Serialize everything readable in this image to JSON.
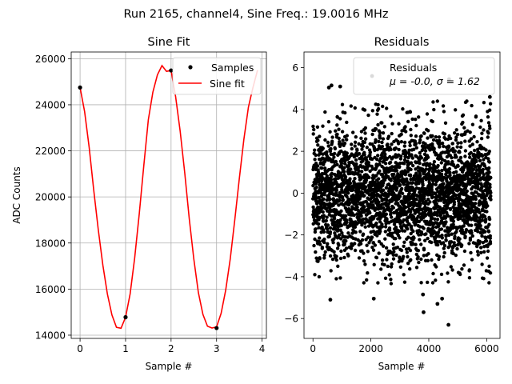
{
  "figure": {
    "suptitle": "Run 2165, channel4, Sine Freq.: 19.0016 MHz"
  },
  "colors": {
    "fit_line": "#ff0000",
    "points": "#000000",
    "grid": "#b0b0b0"
  },
  "chart_data": [
    {
      "id": "sine-fit",
      "type": "line",
      "title": "Sine Fit",
      "xlabel": "Sample #",
      "ylabel": "ADC Counts",
      "xlim": [
        -0.195,
        4.095
      ],
      "ylim": [
        13860,
        26290
      ],
      "xticks": [
        0,
        1,
        2,
        3,
        4
      ],
      "xtick_labels": [
        "0",
        "1",
        "2",
        "3",
        "4"
      ],
      "yticks": [
        14000,
        16000,
        18000,
        20000,
        22000,
        24000,
        26000
      ],
      "ytick_labels": [
        "14000",
        "16000",
        "18000",
        "20000",
        "22000",
        "24000",
        "26000"
      ],
      "grid": true,
      "legend": {
        "position": "top-right",
        "entries": [
          "Samples",
          "Sine fit"
        ]
      },
      "series": [
        {
          "name": "Samples",
          "kind": "scatter",
          "x": [
            0,
            1,
            2,
            3
          ],
          "y": [
            24750,
            14780,
            25490,
            14310
          ]
        },
        {
          "name": "Sine fit",
          "kind": "line",
          "x": [
            0,
            0.1,
            0.2,
            0.3,
            0.4,
            0.5,
            0.6,
            0.7,
            0.8,
            0.9,
            1.0,
            1.1,
            1.2,
            1.3,
            1.4,
            1.5,
            1.6,
            1.7,
            1.8,
            1.9,
            2.0,
            2.1,
            2.2,
            2.3,
            2.4,
            2.5,
            2.6,
            2.7,
            2.8,
            2.9,
            3.0,
            3.1,
            3.2,
            3.3,
            3.4,
            3.5,
            3.6,
            3.7,
            3.8,
            3.9
          ],
          "y": [
            24750,
            23700,
            22150,
            20300,
            18580,
            17050,
            15790,
            14880,
            14340,
            14300,
            14780,
            15790,
            17350,
            19250,
            21350,
            23350,
            24550,
            25300,
            25700,
            25450,
            25490,
            24350,
            22850,
            21050,
            19050,
            17300,
            15850,
            14900,
            14390,
            14310,
            14360,
            14950,
            15950,
            17300,
            19000,
            20800,
            22500,
            23900,
            24750,
            25500
          ]
        }
      ]
    },
    {
      "id": "residuals",
      "type": "scatter",
      "title": "Residuals",
      "xlabel": "Sample #",
      "ylabel": "",
      "xlim": [
        -310,
        6460
      ],
      "ylim": [
        -6.95,
        6.75
      ],
      "xticks": [
        0,
        2000,
        4000,
        6000
      ],
      "xtick_labels": [
        "0",
        "2000",
        "4000",
        "6000"
      ],
      "yticks": [
        -6,
        -4,
        -2,
        0,
        2,
        4,
        6
      ],
      "ytick_labels": [
        "−6",
        "−4",
        "−2",
        "0",
        "2",
        "4",
        "6"
      ],
      "grid": false,
      "legend": {
        "position": "top-right",
        "entries": [
          "Residuals",
          "μ = -0.0, σ = 1.62"
        ]
      },
      "series": [
        {
          "name": "Residuals",
          "kind": "scatter",
          "n_points": 6144,
          "x_range": [
            0,
            6143
          ],
          "mean": -0.0,
          "std": 1.62,
          "outliers": [
            {
              "x": 550,
              "y": 5.05
            },
            {
              "x": 640,
              "y": 5.15
            },
            {
              "x": 940,
              "y": 5.1
            },
            {
              "x": 2040,
              "y": 5.6
            },
            {
              "x": 4700,
              "y": 5.45
            },
            {
              "x": 6110,
              "y": 4.6
            },
            {
              "x": 4680,
              "y": -6.3
            },
            {
              "x": 600,
              "y": -5.1
            },
            {
              "x": 2100,
              "y": -5.05
            },
            {
              "x": 3820,
              "y": -5.7
            },
            {
              "x": 4460,
              "y": -5.05
            },
            {
              "x": 4300,
              "y": -5.3
            },
            {
              "x": 3800,
              "y": -4.85
            }
          ]
        }
      ]
    }
  ]
}
